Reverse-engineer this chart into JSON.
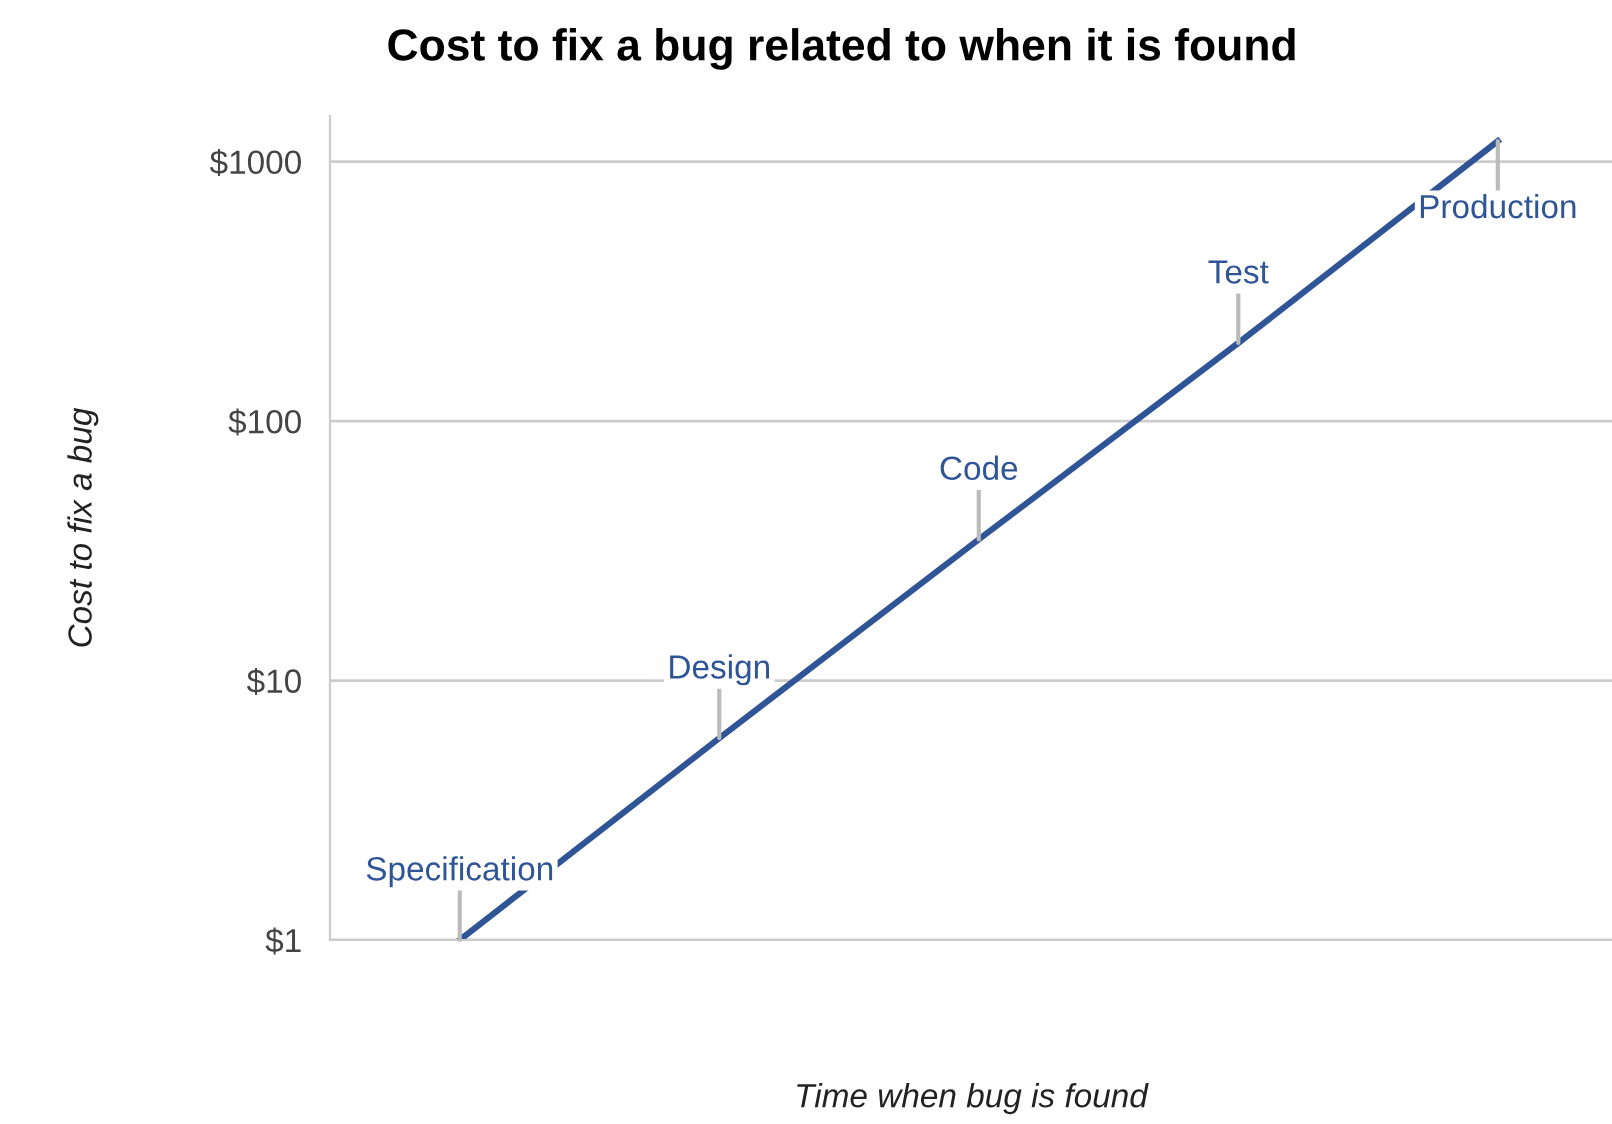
{
  "chart_data": {
    "type": "line",
    "title": "Cost to fix a bug related to when it is found",
    "xlabel": "Time when bug is found",
    "ylabel": "Cost to fix a bug",
    "categories": [
      null,
      null,
      null,
      null,
      null
    ],
    "series": [
      {
        "color": "#2f5597",
        "values": [
          1,
          6,
          35,
          200,
          1200
        ]
      }
    ],
    "annotations": [
      {
        "text": "Specification",
        "y": 1
      },
      {
        "text": "Design",
        "y": 6
      },
      {
        "text": "Code",
        "y": 35
      },
      {
        "text": "Test",
        "y": 200
      },
      {
        "text": "Production",
        "y": 1200
      }
    ],
    "log": true,
    "ylim": [
      1,
      1500
    ],
    "yticks": [
      {
        "value": 1,
        "label": "$1"
      },
      {
        "value": 10,
        "label": "$10"
      },
      {
        "value": 100,
        "label": "$100"
      },
      {
        "value": 1000,
        "label": "$1000"
      }
    ],
    "grid": "y",
    "legend": false,
    "marker": "none",
    "line_style": "solid"
  }
}
